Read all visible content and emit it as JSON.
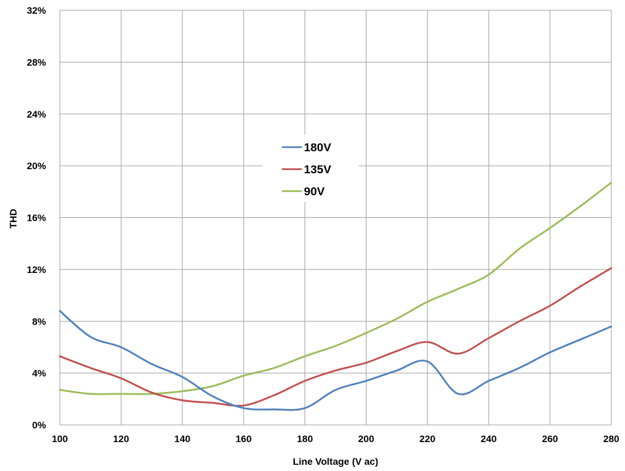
{
  "chart_data": {
    "type": "line",
    "title": "",
    "xlabel": "Line Voltage (V ac)",
    "ylabel": "THD",
    "xlim": [
      100,
      280
    ],
    "ylim": [
      0,
      32
    ],
    "x_ticks": [
      100,
      120,
      140,
      160,
      180,
      200,
      220,
      240,
      260,
      280
    ],
    "x_tick_labels": [
      "100",
      "120",
      "140",
      "160",
      "180",
      "200",
      "220",
      "240",
      "260",
      "280"
    ],
    "y_ticks": [
      0,
      4,
      8,
      12,
      16,
      20,
      24,
      28,
      32
    ],
    "y_tick_labels": [
      "0%",
      "4%",
      "8%",
      "12%",
      "16%",
      "20%",
      "24%",
      "28%",
      "32%"
    ],
    "grid": true,
    "legend": {
      "position": "center"
    },
    "series": [
      {
        "name": "180V",
        "color": "#4f81bd",
        "x": [
          100,
          110,
          120,
          130,
          140,
          150,
          160,
          170,
          180,
          190,
          200,
          210,
          220,
          230,
          240,
          250,
          260,
          270,
          280
        ],
        "values": [
          8.8,
          6.8,
          6.0,
          4.7,
          3.7,
          2.2,
          1.3,
          1.2,
          1.3,
          2.7,
          3.4,
          4.2,
          4.9,
          2.4,
          3.4,
          4.4,
          5.6,
          6.6,
          7.6
        ]
      },
      {
        "name": "135V",
        "color": "#c0504d",
        "x": [
          100,
          110,
          120,
          130,
          140,
          150,
          160,
          170,
          180,
          190,
          200,
          210,
          220,
          230,
          240,
          250,
          260,
          270,
          280
        ],
        "values": [
          5.3,
          4.4,
          3.6,
          2.5,
          1.9,
          1.7,
          1.5,
          2.3,
          3.4,
          4.2,
          4.8,
          5.7,
          6.4,
          5.5,
          6.7,
          8.0,
          9.2,
          10.7,
          12.1
        ]
      },
      {
        "name": "90V",
        "color": "#9bbb59",
        "x": [
          100,
          110,
          120,
          130,
          140,
          150,
          160,
          170,
          180,
          190,
          200,
          210,
          220,
          230,
          240,
          250,
          260,
          270,
          280
        ],
        "values": [
          2.7,
          2.4,
          2.4,
          2.4,
          2.6,
          3.0,
          3.8,
          4.4,
          5.3,
          6.1,
          7.1,
          8.2,
          9.5,
          10.5,
          11.6,
          13.6,
          15.2,
          16.9,
          18.7
        ]
      }
    ]
  }
}
